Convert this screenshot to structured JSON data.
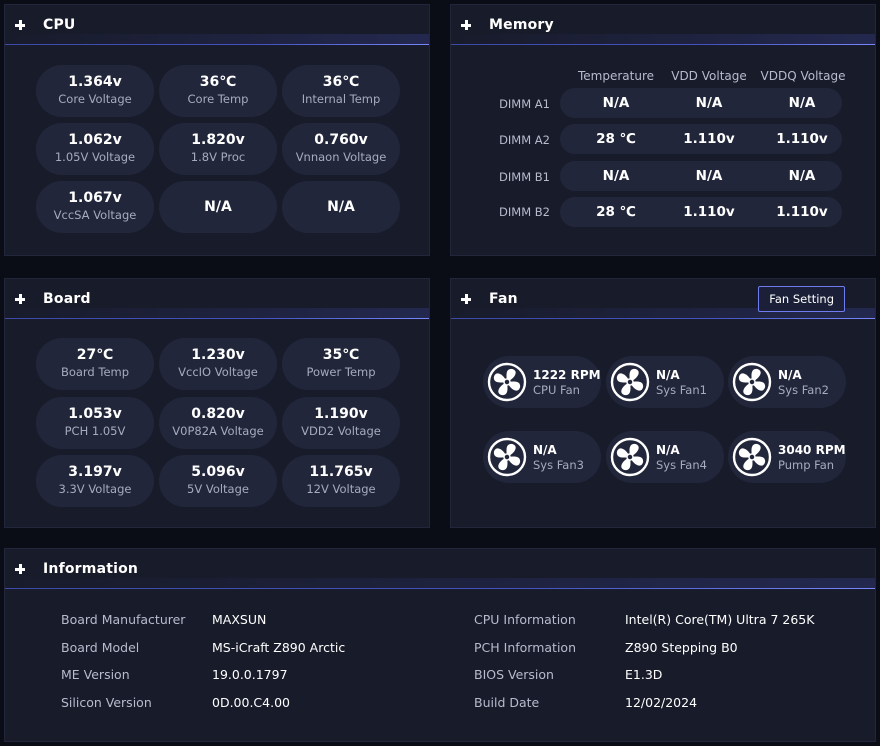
{
  "cpu": {
    "title": "CPU",
    "items": [
      {
        "value": "1.364v",
        "label": "Core Voltage"
      },
      {
        "value": "36℃",
        "label": "Core Temp"
      },
      {
        "value": "36℃",
        "label": "Internal Temp"
      },
      {
        "value": "1.062v",
        "label": "1.05V Voltage"
      },
      {
        "value": "1.820v",
        "label": "1.8V Proc"
      },
      {
        "value": "0.760v",
        "label": "Vnnaon Voltage"
      },
      {
        "value": "1.067v",
        "label": "VccSA Voltage"
      },
      {
        "value": "N/A",
        "label": ""
      },
      {
        "value": "N/A",
        "label": ""
      }
    ]
  },
  "memory": {
    "title": "Memory",
    "columns": [
      "Temperature",
      "VDD Voltage",
      "VDDQ Voltage"
    ],
    "rows": [
      {
        "label": "DIMM A1",
        "values": [
          "N/A",
          "N/A",
          "N/A"
        ]
      },
      {
        "label": "DIMM A2",
        "values": [
          "28 ℃",
          "1.110v",
          "1.110v"
        ]
      },
      {
        "label": "DIMM B1",
        "values": [
          "N/A",
          "N/A",
          "N/A"
        ]
      },
      {
        "label": "DIMM B2",
        "values": [
          "28 ℃",
          "1.110v",
          "1.110v"
        ]
      }
    ]
  },
  "board": {
    "title": "Board",
    "items": [
      {
        "value": "27℃",
        "label": "Board Temp"
      },
      {
        "value": "1.230v",
        "label": "VccIO Voltage"
      },
      {
        "value": "35℃",
        "label": "Power Temp"
      },
      {
        "value": "1.053v",
        "label": "PCH 1.05V"
      },
      {
        "value": "0.820v",
        "label": "V0P82A Voltage"
      },
      {
        "value": "1.190v",
        "label": "VDD2 Voltage"
      },
      {
        "value": "3.197v",
        "label": "3.3V Voltage"
      },
      {
        "value": "5.096v",
        "label": "5V Voltage"
      },
      {
        "value": "11.765v",
        "label": "12V Voltage"
      }
    ]
  },
  "fan": {
    "title": "Fan",
    "setting_button": "Fan Setting",
    "icon": "fan-icon",
    "items": [
      {
        "value": "1222 RPM",
        "label": "CPU Fan"
      },
      {
        "value": "N/A",
        "label": "Sys Fan1"
      },
      {
        "value": "N/A",
        "label": "Sys Fan2"
      },
      {
        "value": "N/A",
        "label": "Sys Fan3"
      },
      {
        "value": "N/A",
        "label": "Sys Fan4"
      },
      {
        "value": "3040 RPM",
        "label": "Pump Fan"
      }
    ]
  },
  "information": {
    "title": "Information",
    "left": [
      {
        "key": "Board Manufacturer",
        "value": "MAXSUN"
      },
      {
        "key": "Board Model",
        "value": "MS-iCraft Z890 Arctic"
      },
      {
        "key": "ME Version",
        "value": "19.0.0.1797"
      },
      {
        "key": "Silicon Version",
        "value": "0D.00.C4.00"
      }
    ],
    "right": [
      {
        "key": "CPU Information",
        "value": "Intel(R) Core(TM) Ultra 7 265K"
      },
      {
        "key": "PCH Information",
        "value": "Z890 Stepping B0"
      },
      {
        "key": "BIOS Version",
        "value": "E1.3D"
      },
      {
        "key": "Build Date",
        "value": "12/02/2024"
      }
    ]
  },
  "colors": {
    "background": "#0b0d16",
    "panel": "#181b2a",
    "pill": "#22263a",
    "accent": "#6f7cf0"
  }
}
